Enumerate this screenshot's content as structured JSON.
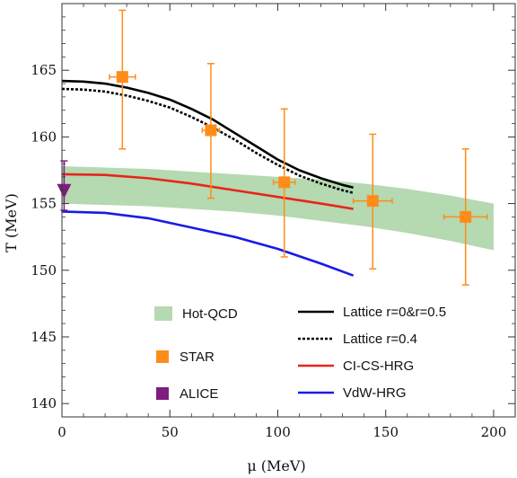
{
  "chart_data": {
    "type": "line",
    "xlabel": "μ (MeV)",
    "ylabel": "T (MeV)",
    "xlim": [
      0,
      210
    ],
    "ylim": [
      139,
      170
    ],
    "xticks": [
      0,
      50,
      100,
      150,
      200
    ],
    "yticks": [
      140,
      145,
      150,
      155,
      160,
      165
    ],
    "grid": false,
    "legend_placement": "bottom",
    "band": {
      "name": "Hot-QCD",
      "color": "#b5d9b0",
      "x": [
        0,
        20,
        40,
        60,
        80,
        100,
        120,
        140,
        160,
        180,
        200
      ],
      "upper": [
        157.8,
        157.7,
        157.6,
        157.4,
        157.2,
        157.0,
        156.8,
        156.5,
        156.1,
        155.6,
        155.0
      ],
      "lower": [
        155.0,
        154.9,
        154.8,
        154.6,
        154.4,
        154.1,
        153.7,
        153.3,
        152.8,
        152.2,
        151.5
      ]
    },
    "series": [
      {
        "name": "Lattice r=0&r=0.5",
        "color": "#000000",
        "dash": "solid",
        "x": [
          0,
          10,
          20,
          30,
          40,
          50,
          60,
          70,
          80,
          90,
          100,
          110,
          120,
          130,
          135
        ],
        "y": [
          164.2,
          164.15,
          164.0,
          163.7,
          163.3,
          162.8,
          162.1,
          161.3,
          160.3,
          159.3,
          158.3,
          157.5,
          156.9,
          156.4,
          156.2
        ]
      },
      {
        "name": "Lattice r=0.4",
        "color": "#000000",
        "dash": "dotted",
        "x": [
          0,
          10,
          20,
          30,
          40,
          50,
          60,
          70,
          80,
          90,
          100,
          110,
          120,
          130,
          135
        ],
        "y": [
          163.6,
          163.55,
          163.4,
          163.1,
          162.7,
          162.2,
          161.5,
          160.7,
          159.8,
          158.8,
          157.9,
          157.1,
          156.5,
          156.0,
          155.8
        ]
      },
      {
        "name": "CI-CS-HRG",
        "color": "#e8251b",
        "dash": "solid",
        "x": [
          0,
          20,
          40,
          60,
          80,
          100,
          120,
          135
        ],
        "y": [
          157.2,
          157.15,
          156.9,
          156.5,
          156.0,
          155.5,
          155.0,
          154.6
        ]
      },
      {
        "name": "VdW-HRG",
        "color": "#1a1ae6",
        "dash": "solid",
        "x": [
          0,
          20,
          40,
          60,
          80,
          100,
          120,
          135
        ],
        "y": [
          154.4,
          154.3,
          153.9,
          153.2,
          152.5,
          151.6,
          150.5,
          149.6
        ]
      }
    ],
    "points": [
      {
        "name": "STAR",
        "color": "#ff8c1a",
        "marker": "square",
        "data": [
          {
            "x": 28,
            "y": 164.5,
            "xerr": 6,
            "yerr_low": 5.4,
            "yerr_high": 5.0
          },
          {
            "x": 69,
            "y": 160.5,
            "xerr": 4,
            "yerr_low": 5.1,
            "yerr_high": 5.0
          },
          {
            "x": 103,
            "y": 156.6,
            "xerr": 5,
            "yerr_low": 5.6,
            "yerr_high": 5.5
          },
          {
            "x": 144,
            "y": 155.2,
            "xerr": 9,
            "yerr_low": 5.1,
            "yerr_high": 5.0
          },
          {
            "x": 187,
            "y": 154.0,
            "xerr": 10,
            "yerr_low": 5.1,
            "yerr_high": 5.1
          }
        ]
      },
      {
        "name": "ALICE",
        "color": "#7e1e80",
        "marker": "triangle",
        "data": [
          {
            "x": 1,
            "y": 156.0,
            "xerr": 0,
            "yerr_low": 1.5,
            "yerr_high": 2.2
          }
        ]
      }
    ],
    "legend": [
      {
        "label": "Hot-QCD",
        "swatch": "band",
        "color": "#b5d9b0"
      },
      {
        "label": "STAR",
        "swatch": "square",
        "color": "#ff8c1a"
      },
      {
        "label": "ALICE",
        "swatch": "square",
        "color": "#7e1e80"
      },
      {
        "label": "Lattice r=0&r=0.5",
        "swatch": "line",
        "color": "#000000",
        "dash": "solid"
      },
      {
        "label": "Lattice r=0.4",
        "swatch": "line",
        "color": "#000000",
        "dash": "dotted"
      },
      {
        "label": "CI-CS-HRG",
        "swatch": "line",
        "color": "#e8251b",
        "dash": "solid"
      },
      {
        "label": "VdW-HRG",
        "swatch": "line",
        "color": "#1a1ae6",
        "dash": "solid"
      }
    ]
  }
}
